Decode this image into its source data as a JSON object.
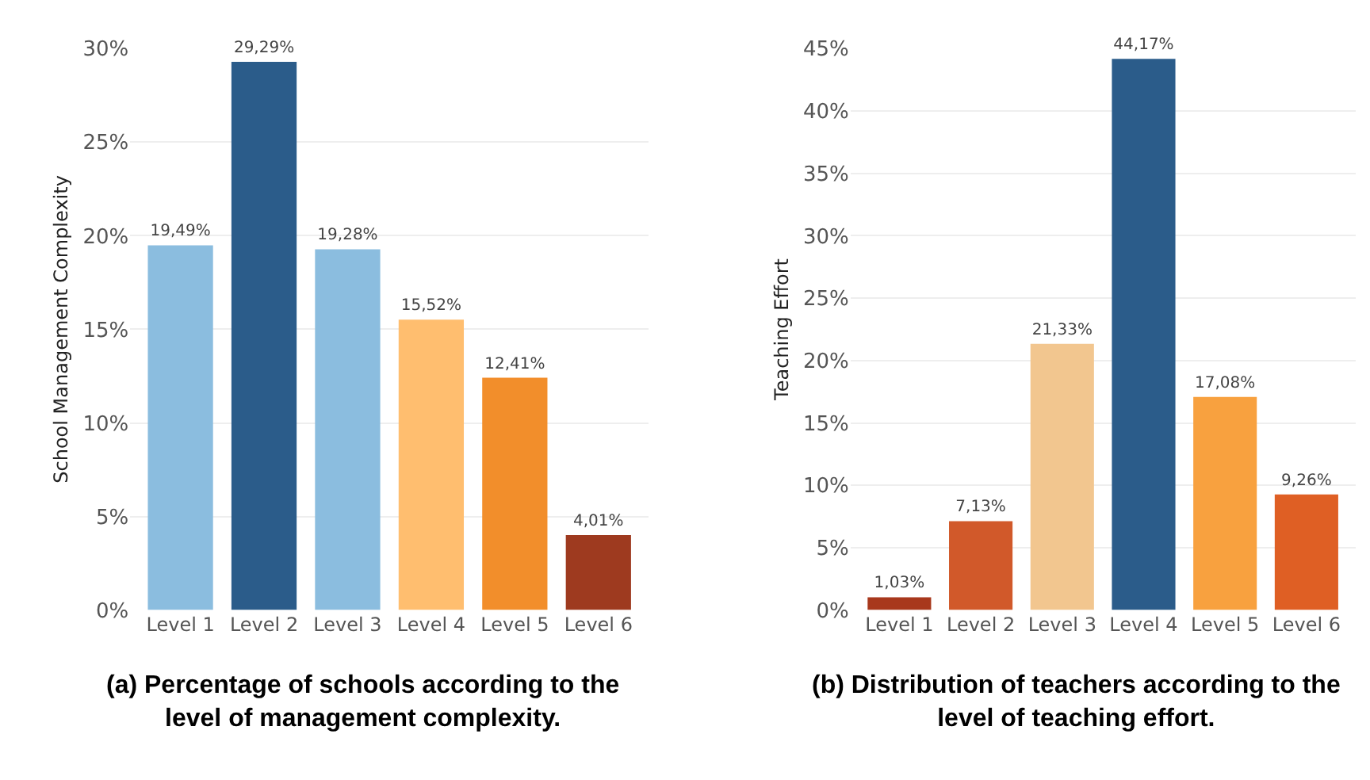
{
  "chart_data": [
    {
      "type": "bar",
      "title": "(a) Percentage of schools according to the level of management complexity.",
      "ylabel": "School Management Complexity",
      "categories": [
        "Level 1",
        "Level 2",
        "Level 3",
        "Level 4",
        "Level 5",
        "Level 6"
      ],
      "values": [
        19.49,
        29.29,
        19.28,
        15.52,
        12.41,
        4.01
      ],
      "colors": [
        "#8bbddf",
        "#2b5c8a",
        "#8bbddf",
        "#ffbe6f",
        "#f28e2b",
        "#9e3a1f"
      ],
      "value_labels": [
        "19,49%",
        "29,29%",
        "19,28%",
        "15,52%",
        "12,41%",
        "4,01%"
      ],
      "ylim": [
        0,
        30
      ],
      "yticks": [
        {
          "value": 0,
          "label": "0%"
        },
        {
          "value": 5,
          "label": "5%"
        },
        {
          "value": 10,
          "label": "10%"
        },
        {
          "value": 15,
          "label": "15%"
        },
        {
          "value": 20,
          "label": "20%"
        },
        {
          "value": 25,
          "label": "25%"
        },
        {
          "value": 30,
          "label": "30%"
        }
      ],
      "grid": "y"
    },
    {
      "type": "bar",
      "title": "(b) Distribution of teachers according to the level of teaching effort.",
      "ylabel": "Teaching Effort",
      "categories": [
        "Level 1",
        "Level 2",
        "Level 3",
        "Level 4",
        "Level 5",
        "Level 6"
      ],
      "values": [
        1.03,
        7.13,
        21.33,
        44.17,
        17.08,
        9.26
      ],
      "colors": [
        "#a8381c",
        "#d1592a",
        "#f2c68f",
        "#2b5c8a",
        "#f8a13f",
        "#df5f24"
      ],
      "value_labels": [
        "1,03%",
        "7,13%",
        "21,33%",
        "44,17%",
        "17,08%",
        "9,26%"
      ],
      "ylim": [
        0,
        45
      ],
      "yticks": [
        {
          "value": 0,
          "label": "0%"
        },
        {
          "value": 5,
          "label": "5%"
        },
        {
          "value": 10,
          "label": "10%"
        },
        {
          "value": 15,
          "label": "15%"
        },
        {
          "value": 20,
          "label": "20%"
        },
        {
          "value": 25,
          "label": "25%"
        },
        {
          "value": 30,
          "label": "30%"
        },
        {
          "value": 35,
          "label": "35%"
        },
        {
          "value": 40,
          "label": "40%"
        },
        {
          "value": 45,
          "label": "45%"
        }
      ],
      "grid": "y"
    }
  ]
}
